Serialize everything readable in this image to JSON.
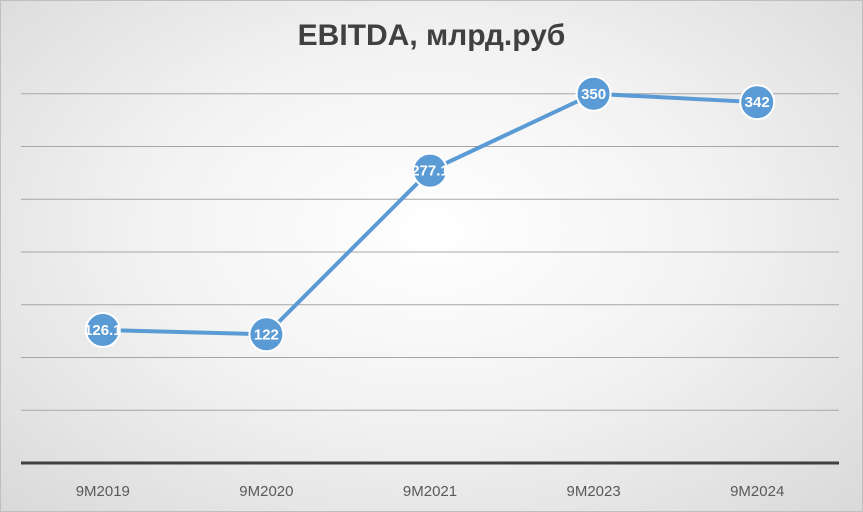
{
  "chart_data": {
    "type": "line",
    "title": "EBITDA, млрд.руб",
    "categories": [
      "9M2019",
      "9M2020",
      "9M2021",
      "9M2023",
      "9M2024"
    ],
    "series": [
      {
        "values": [
          126.1,
          122,
          277.1,
          350,
          342
        ],
        "color": "#5b9bd5"
      }
    ],
    "data_labels": [
      "126.1",
      "122",
      "277.1",
      "350",
      "342"
    ],
    "ylim": [
      0,
      400
    ],
    "gridlines": true,
    "legend": "none"
  }
}
